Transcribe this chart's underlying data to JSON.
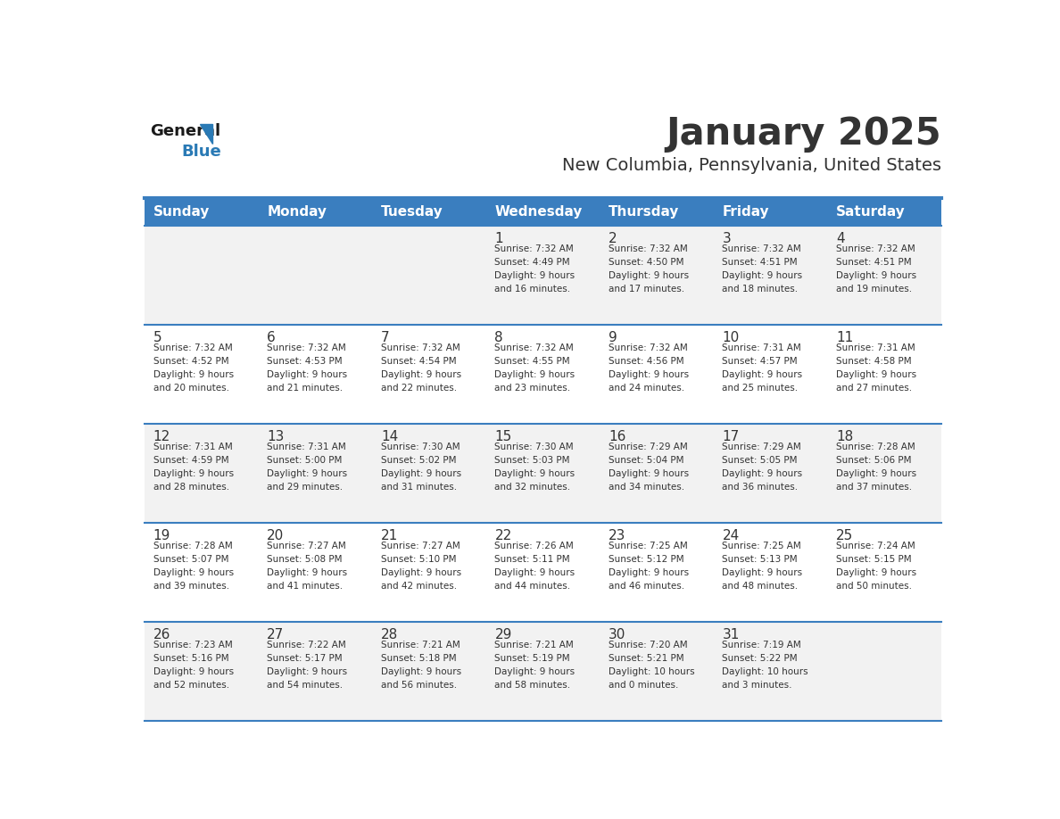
{
  "title": "January 2025",
  "subtitle": "New Columbia, Pennsylvania, United States",
  "header_bg": "#3a7ebf",
  "header_text_color": "#ffffff",
  "day_names": [
    "Sunday",
    "Monday",
    "Tuesday",
    "Wednesday",
    "Thursday",
    "Friday",
    "Saturday"
  ],
  "row_bg_odd": "#f2f2f2",
  "row_bg_even": "#ffffff",
  "cell_text_color": "#333333",
  "day_num_color": "#333333",
  "separator_color": "#3a7ebf",
  "logo_general_color": "#1a1a1a",
  "logo_blue_color": "#2a7ab5",
  "weeks": [
    {
      "days": [
        {
          "day": null,
          "info": null
        },
        {
          "day": null,
          "info": null
        },
        {
          "day": null,
          "info": null
        },
        {
          "day": "1",
          "info": "Sunrise: 7:32 AM\nSunset: 4:49 PM\nDaylight: 9 hours\nand 16 minutes."
        },
        {
          "day": "2",
          "info": "Sunrise: 7:32 AM\nSunset: 4:50 PM\nDaylight: 9 hours\nand 17 minutes."
        },
        {
          "day": "3",
          "info": "Sunrise: 7:32 AM\nSunset: 4:51 PM\nDaylight: 9 hours\nand 18 minutes."
        },
        {
          "day": "4",
          "info": "Sunrise: 7:32 AM\nSunset: 4:51 PM\nDaylight: 9 hours\nand 19 minutes."
        }
      ]
    },
    {
      "days": [
        {
          "day": "5",
          "info": "Sunrise: 7:32 AM\nSunset: 4:52 PM\nDaylight: 9 hours\nand 20 minutes."
        },
        {
          "day": "6",
          "info": "Sunrise: 7:32 AM\nSunset: 4:53 PM\nDaylight: 9 hours\nand 21 minutes."
        },
        {
          "day": "7",
          "info": "Sunrise: 7:32 AM\nSunset: 4:54 PM\nDaylight: 9 hours\nand 22 minutes."
        },
        {
          "day": "8",
          "info": "Sunrise: 7:32 AM\nSunset: 4:55 PM\nDaylight: 9 hours\nand 23 minutes."
        },
        {
          "day": "9",
          "info": "Sunrise: 7:32 AM\nSunset: 4:56 PM\nDaylight: 9 hours\nand 24 minutes."
        },
        {
          "day": "10",
          "info": "Sunrise: 7:31 AM\nSunset: 4:57 PM\nDaylight: 9 hours\nand 25 minutes."
        },
        {
          "day": "11",
          "info": "Sunrise: 7:31 AM\nSunset: 4:58 PM\nDaylight: 9 hours\nand 27 minutes."
        }
      ]
    },
    {
      "days": [
        {
          "day": "12",
          "info": "Sunrise: 7:31 AM\nSunset: 4:59 PM\nDaylight: 9 hours\nand 28 minutes."
        },
        {
          "day": "13",
          "info": "Sunrise: 7:31 AM\nSunset: 5:00 PM\nDaylight: 9 hours\nand 29 minutes."
        },
        {
          "day": "14",
          "info": "Sunrise: 7:30 AM\nSunset: 5:02 PM\nDaylight: 9 hours\nand 31 minutes."
        },
        {
          "day": "15",
          "info": "Sunrise: 7:30 AM\nSunset: 5:03 PM\nDaylight: 9 hours\nand 32 minutes."
        },
        {
          "day": "16",
          "info": "Sunrise: 7:29 AM\nSunset: 5:04 PM\nDaylight: 9 hours\nand 34 minutes."
        },
        {
          "day": "17",
          "info": "Sunrise: 7:29 AM\nSunset: 5:05 PM\nDaylight: 9 hours\nand 36 minutes."
        },
        {
          "day": "18",
          "info": "Sunrise: 7:28 AM\nSunset: 5:06 PM\nDaylight: 9 hours\nand 37 minutes."
        }
      ]
    },
    {
      "days": [
        {
          "day": "19",
          "info": "Sunrise: 7:28 AM\nSunset: 5:07 PM\nDaylight: 9 hours\nand 39 minutes."
        },
        {
          "day": "20",
          "info": "Sunrise: 7:27 AM\nSunset: 5:08 PM\nDaylight: 9 hours\nand 41 minutes."
        },
        {
          "day": "21",
          "info": "Sunrise: 7:27 AM\nSunset: 5:10 PM\nDaylight: 9 hours\nand 42 minutes."
        },
        {
          "day": "22",
          "info": "Sunrise: 7:26 AM\nSunset: 5:11 PM\nDaylight: 9 hours\nand 44 minutes."
        },
        {
          "day": "23",
          "info": "Sunrise: 7:25 AM\nSunset: 5:12 PM\nDaylight: 9 hours\nand 46 minutes."
        },
        {
          "day": "24",
          "info": "Sunrise: 7:25 AM\nSunset: 5:13 PM\nDaylight: 9 hours\nand 48 minutes."
        },
        {
          "day": "25",
          "info": "Sunrise: 7:24 AM\nSunset: 5:15 PM\nDaylight: 9 hours\nand 50 minutes."
        }
      ]
    },
    {
      "days": [
        {
          "day": "26",
          "info": "Sunrise: 7:23 AM\nSunset: 5:16 PM\nDaylight: 9 hours\nand 52 minutes."
        },
        {
          "day": "27",
          "info": "Sunrise: 7:22 AM\nSunset: 5:17 PM\nDaylight: 9 hours\nand 54 minutes."
        },
        {
          "day": "28",
          "info": "Sunrise: 7:21 AM\nSunset: 5:18 PM\nDaylight: 9 hours\nand 56 minutes."
        },
        {
          "day": "29",
          "info": "Sunrise: 7:21 AM\nSunset: 5:19 PM\nDaylight: 9 hours\nand 58 minutes."
        },
        {
          "day": "30",
          "info": "Sunrise: 7:20 AM\nSunset: 5:21 PM\nDaylight: 10 hours\nand 0 minutes."
        },
        {
          "day": "31",
          "info": "Sunrise: 7:19 AM\nSunset: 5:22 PM\nDaylight: 10 hours\nand 3 minutes."
        },
        {
          "day": null,
          "info": null
        }
      ]
    }
  ]
}
